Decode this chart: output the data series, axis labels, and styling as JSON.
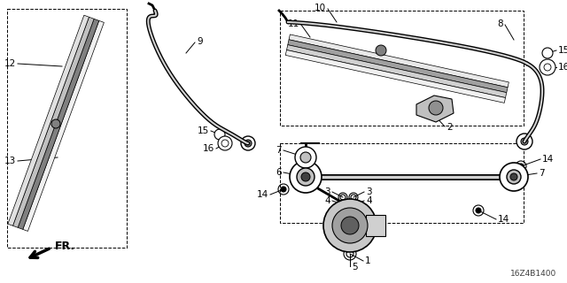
{
  "background_color": "#ffffff",
  "diagram_code": "16Z4B1400",
  "line_color": "#000000",
  "text_color": "#000000",
  "font_size": 7.5
}
